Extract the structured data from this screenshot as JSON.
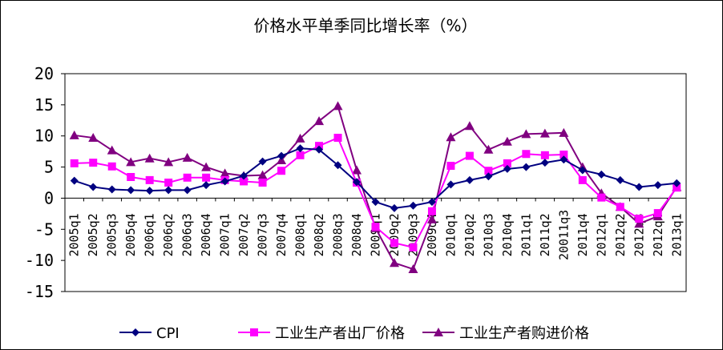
{
  "chart_data": {
    "type": "line",
    "title": "价格水平单季同比增长率（%）",
    "xlabel": "",
    "ylabel": "",
    "ylim": [
      -15,
      20
    ],
    "yticks": [
      20,
      15,
      10,
      5,
      0,
      -5,
      -10,
      -15
    ],
    "grid": false,
    "legend_position": "bottom",
    "categories": [
      "2005q1",
      "2005q2",
      "2005q3",
      "2005q4",
      "2006q1",
      "2006q2",
      "2006q3",
      "2006q4",
      "2007q1",
      "2007q2",
      "2007q3",
      "2007q4",
      "2008q1",
      "2008q2",
      "2008q3",
      "2008q4",
      "2009q1",
      "2009q2",
      "2009q3",
      "2009q4",
      "2010q1",
      "2010q2",
      "2010q3",
      "2010q4",
      "2011q1",
      "2011q2",
      "20011q3",
      "2011q4",
      "2012q1",
      "2012q2",
      "2012q3",
      "2012q4",
      "2013q1"
    ],
    "series": [
      {
        "name": "CPI",
        "color": "#000080",
        "marker": "diamond",
        "values": [
          2.8,
          1.8,
          1.4,
          1.3,
          1.2,
          1.3,
          1.3,
          2.1,
          2.7,
          3.6,
          5.9,
          6.8,
          8.0,
          7.8,
          5.3,
          2.6,
          -0.6,
          -1.6,
          -1.2,
          -0.6,
          2.2,
          2.9,
          3.5,
          4.7,
          5.0,
          5.7,
          6.2,
          4.5,
          3.8,
          2.9,
          1.8,
          2.1,
          2.4
        ]
      },
      {
        "name": "工业生产者出厂价格",
        "color": "#ff00ff",
        "marker": "square",
        "values": [
          5.6,
          5.7,
          5.1,
          3.4,
          2.9,
          2.5,
          3.3,
          3.3,
          2.9,
          2.7,
          2.5,
          4.4,
          6.9,
          8.4,
          9.7,
          2.5,
          -4.6,
          -7.2,
          -7.9,
          -2.1,
          5.2,
          6.8,
          4.4,
          5.6,
          7.1,
          6.9,
          7.0,
          2.9,
          0.1,
          -1.4,
          -3.3,
          -2.4,
          1.7
        ]
      },
      {
        "name": "工业生产者购进价格",
        "color": "#800080",
        "marker": "triangle",
        "values": [
          10.1,
          9.7,
          7.7,
          5.8,
          6.4,
          5.8,
          6.5,
          5.0,
          4.0,
          3.6,
          3.7,
          6.1,
          9.6,
          12.4,
          14.8,
          4.5,
          -4.8,
          -10.4,
          -11.4,
          -3.4,
          9.8,
          11.6,
          7.8,
          9.1,
          10.3,
          10.4,
          10.5,
          5.0,
          0.8,
          -1.4,
          -4.1,
          -2.9,
          1.8
        ]
      }
    ]
  }
}
